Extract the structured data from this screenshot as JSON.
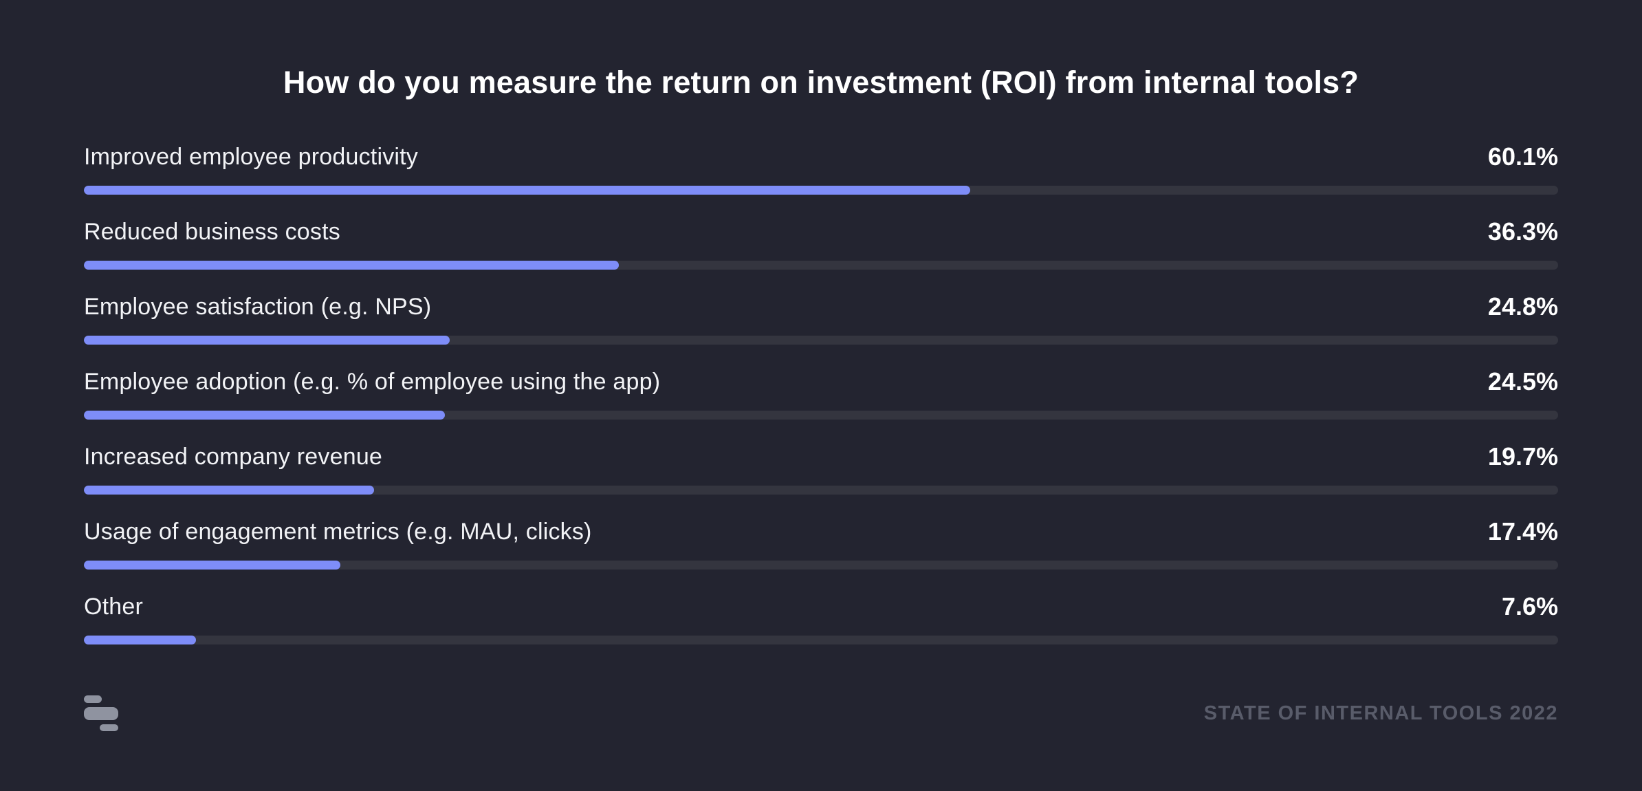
{
  "title": "How do you measure the return on investment (ROI) from internal tools?",
  "chart_data": {
    "type": "bar",
    "orientation": "horizontal",
    "title": "How do you measure the return on investment (ROI) from internal tools?",
    "categories": [
      "Improved employee productivity",
      "Reduced business costs",
      "Employee satisfaction (e.g. NPS)",
      "Employee adoption (e.g. % of employee using the app)",
      "Increased company revenue",
      "Usage of engagement metrics (e.g. MAU, clicks)",
      "Other"
    ],
    "values": [
      60.1,
      36.3,
      24.8,
      24.5,
      19.7,
      17.4,
      7.6
    ],
    "value_suffix": "%",
    "xlim": [
      0,
      100
    ],
    "grid": false,
    "legend": false,
    "value_labels_position": "right"
  },
  "footer": {
    "logo": "retool-logo",
    "label": "STATE OF INTERNAL TOOLS 2022"
  },
  "colors": {
    "background": "#232430",
    "bar_fill": "#7E8DF8",
    "bar_track": "#34353F",
    "text": "#FFFFFF",
    "muted_text": "#595C6A",
    "logo": "#8F93A0"
  }
}
